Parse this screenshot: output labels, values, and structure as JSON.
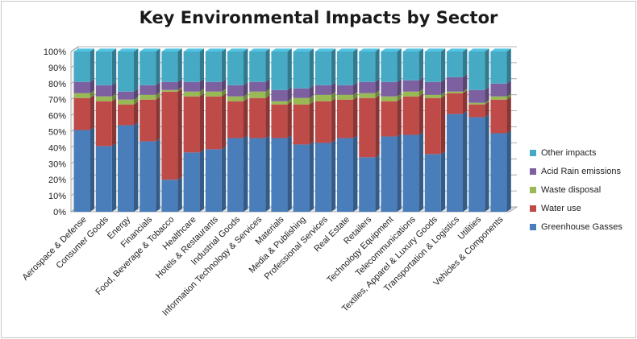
{
  "chart_data": {
    "type": "bar",
    "stacked": true,
    "percent": true,
    "title": "Key Environmental Impacts by Sector",
    "ylim": [
      0,
      100
    ],
    "yticks": [
      "0%",
      "10%",
      "20%",
      "30%",
      "40%",
      "50%",
      "60%",
      "70%",
      "80%",
      "90%",
      "100%"
    ],
    "grid": true,
    "legend_position": "right",
    "categories": [
      "Aerospace & Defense",
      "Consumer Goods",
      "Energy",
      "Financials",
      "Food, Beverage & Tobacco",
      "Healthcare",
      "Hotels & Restaurants",
      "Industrial Goods",
      "Information Technology & Services",
      "Materials",
      "Media & Publishing",
      "Professional Services",
      "Real Estate",
      "Retailers",
      "Technology Equipment",
      "Telecommunications",
      "Textiles, Apparel & Luxury Goods",
      "Transportation & Logistics",
      "Utilities",
      "Vehicles & Components"
    ],
    "series": [
      {
        "name": "Greenhouse Gasses",
        "color": "#4a7ebb",
        "values": [
          51,
          41,
          54,
          44,
          20,
          37,
          39,
          46,
          46,
          46,
          42,
          43,
          46,
          34,
          47,
          48,
          36,
          61,
          59,
          49
        ]
      },
      {
        "name": "Water use",
        "color": "#be4b48",
        "values": [
          20,
          28,
          13,
          26,
          55,
          35,
          33,
          23,
          25,
          21,
          25,
          26,
          24,
          37,
          22,
          24,
          35,
          13,
          8,
          21
        ]
      },
      {
        "name": "Waste disposal",
        "color": "#98b954",
        "values": [
          3,
          3,
          3,
          3,
          1,
          3,
          3,
          3,
          4,
          2,
          4,
          4,
          3,
          3,
          3,
          3,
          2,
          1,
          1,
          2
        ]
      },
      {
        "name": "Acid Rain emissions",
        "color": "#7d60a0",
        "values": [
          7,
          7,
          5,
          6,
          5,
          6,
          6,
          7,
          6,
          7,
          6,
          6,
          6,
          7,
          9,
          7,
          8,
          9,
          8,
          8
        ]
      },
      {
        "name": "Other impacts",
        "color": "#46aac5",
        "values": [
          19,
          21,
          25,
          21,
          19,
          19,
          19,
          21,
          19,
          24,
          23,
          21,
          21,
          19,
          19,
          18,
          19,
          16,
          24,
          20
        ]
      }
    ]
  }
}
